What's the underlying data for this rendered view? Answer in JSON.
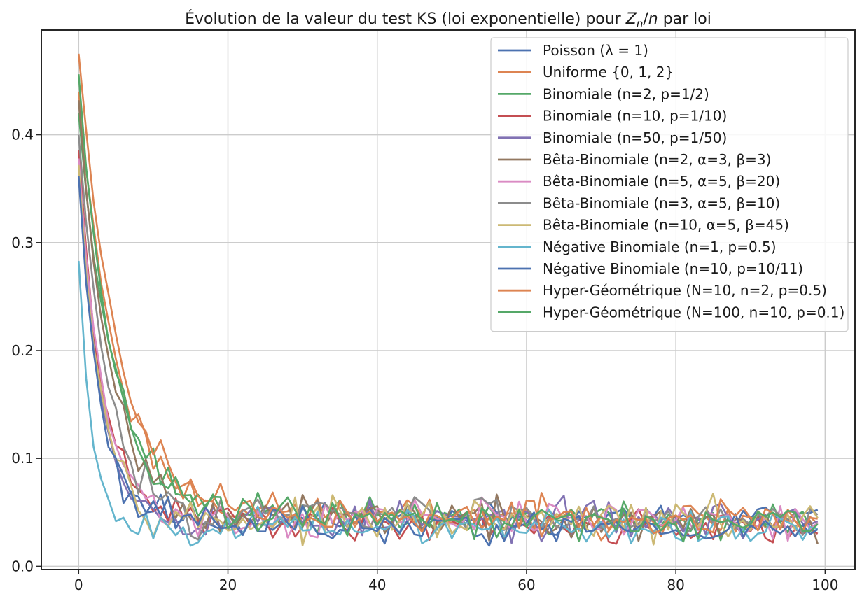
{
  "chart_data": {
    "type": "line",
    "title": "Évolution de la valeur du test KS (loi exponentielle) pour Zₙ/n par loi",
    "title_parts": {
      "prefix": "Évolution de la valeur du test KS (loi exponentielle) pour ",
      "math_main": "Z",
      "math_sub": "n",
      "math_slash": "/",
      "math_n": "n",
      "suffix": " par loi"
    },
    "xlabel": "",
    "ylabel": "",
    "xlim": [
      -5,
      104
    ],
    "ylim": [
      -0.003,
      0.497
    ],
    "xticks": [
      0,
      20,
      40,
      60,
      80,
      100
    ],
    "xtick_labels": [
      "0",
      "20",
      "40",
      "60",
      "80",
      "100"
    ],
    "yticks": [
      0.0,
      0.1,
      0.2,
      0.3,
      0.4
    ],
    "ytick_labels": [
      "0.0",
      "0.1",
      "0.2",
      "0.3",
      "0.4"
    ],
    "grid": true,
    "legend_position": "top-right",
    "x": [
      0,
      1,
      2,
      3,
      4,
      5,
      6,
      7,
      8,
      9,
      10,
      11,
      12,
      13,
      14,
      15,
      16,
      17,
      18,
      19,
      20,
      21,
      22,
      23,
      24,
      25,
      26,
      27,
      28,
      29,
      30,
      31,
      32,
      33,
      34,
      35,
      36,
      37,
      38,
      39,
      40,
      41,
      42,
      43,
      44,
      45,
      46,
      47,
      48,
      49,
      50,
      51,
      52,
      53,
      54,
      55,
      56,
      57,
      58,
      59,
      60,
      61,
      62,
      63,
      64,
      65,
      66,
      67,
      68,
      69,
      70,
      71,
      72,
      73,
      74,
      75,
      76,
      77,
      78,
      79,
      80,
      81,
      82,
      83,
      84,
      85,
      86,
      87,
      88,
      89,
      90,
      91,
      92,
      93,
      94,
      95,
      96,
      97,
      98,
      99
    ],
    "series": [
      {
        "name": "Poisson (λ = 1)",
        "color": "#4c72b0",
        "start": 0.37,
        "tau": 2.9,
        "floor": 0.043,
        "decay": 0.0,
        "noise": 0.008,
        "seed": 11
      },
      {
        "name": "Uniforme {0, 1, 2}",
        "color": "#dd8452",
        "start": 0.44,
        "tau": 5.0,
        "floor": 0.052,
        "decay": 0.0001,
        "noise": 0.008,
        "seed": 23
      },
      {
        "name": "Binomiale (n=2, p=1/2)",
        "color": "#55a868",
        "start": 0.42,
        "tau": 4.8,
        "floor": 0.05,
        "decay": 0.0001,
        "noise": 0.008,
        "seed": 37
      },
      {
        "name": "Binomiale (n=10, p=1/10)",
        "color": "#c44e52",
        "start": 0.386,
        "tau": 3.0,
        "floor": 0.045,
        "decay": 0.0001,
        "noise": 0.008,
        "seed": 41
      },
      {
        "name": "Binomiale (n=50, p=1/50)",
        "color": "#8172b3",
        "start": 0.365,
        "tau": 2.9,
        "floor": 0.043,
        "decay": 0.0,
        "noise": 0.009,
        "seed": 53
      },
      {
        "name": "Bêta-Binomiale (n=2, α=3, β=3)",
        "color": "#937860",
        "start": 0.432,
        "tau": 4.2,
        "floor": 0.048,
        "decay": 0.0001,
        "noise": 0.009,
        "seed": 67
      },
      {
        "name": "Bêta-Binomiale (n=5, α=5, β=20)",
        "color": "#da8bc3",
        "start": 0.378,
        "tau": 3.1,
        "floor": 0.044,
        "decay": 0.0,
        "noise": 0.009,
        "seed": 71
      },
      {
        "name": "Bêta-Binomiale (n=3, α=5, β=10)",
        "color": "#8c8c8c",
        "start": 0.4,
        "tau": 3.7,
        "floor": 0.047,
        "decay": 0.0,
        "noise": 0.01,
        "seed": 83
      },
      {
        "name": "Bêta-Binomiale (n=10, α=5, β=45)",
        "color": "#ccb974",
        "start": 0.372,
        "tau": 3.0,
        "floor": 0.042,
        "decay": 0.0,
        "noise": 0.009,
        "seed": 97
      },
      {
        "name": "Négative Binomiale (n=1, p=0.5)",
        "color": "#64b5cd",
        "start": 0.283,
        "tau": 1.7,
        "floor": 0.036,
        "decay": 0.0,
        "noise": 0.008,
        "seed": 101
      },
      {
        "name": "Négative Binomiale (n=10, p=10/11)",
        "color": "#4c72b0",
        "start": 0.362,
        "tau": 2.8,
        "floor": 0.042,
        "decay": 0.0001,
        "noise": 0.008,
        "seed": 113
      },
      {
        "name": "Hyper-Géométrique (N=10, n=2, p=0.5)",
        "color": "#dd8452",
        "start": 0.475,
        "tau": 5.3,
        "floor": 0.05,
        "decay": 0.0001,
        "noise": 0.008,
        "seed": 127
      },
      {
        "name": "Hyper-Géométrique (N=100, n=10, p=0.1)",
        "color": "#55a868",
        "start": 0.456,
        "tau": 4.4,
        "floor": 0.049,
        "decay": 0.0001,
        "noise": 0.008,
        "seed": 131
      }
    ]
  }
}
